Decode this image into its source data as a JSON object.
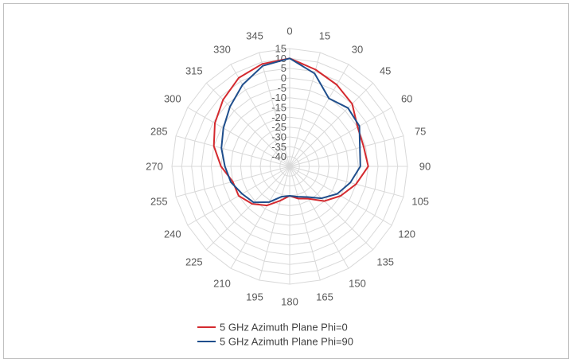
{
  "chart_data": {
    "type": "radar",
    "title": "",
    "angle_labels": [
      "0",
      "15",
      "30",
      "45",
      "60",
      "75",
      "90",
      "105",
      "120",
      "135",
      "150",
      "165",
      "180",
      "195",
      "210",
      "225",
      "240",
      "255",
      "270",
      "285",
      "300",
      "315",
      "330",
      "345"
    ],
    "radial_tick_labels": [
      "15",
      "10",
      "5",
      "0",
      "-5",
      "-10",
      "-15",
      "-20",
      "-25",
      "-30",
      "-35",
      "-40"
    ],
    "rlim": [
      -45,
      15
    ],
    "grid": true,
    "legend_position": "bottom",
    "series": [
      {
        "name": "5 GHz Azimuth Plane Phi=0",
        "color": "#d42a2f",
        "values": [
          10,
          6,
          3,
          0,
          -5,
          -6,
          -5,
          -10,
          -15,
          -20,
          -26,
          -28,
          -30,
          -27,
          -22,
          -18,
          -15,
          -15,
          -10,
          -5,
          -1,
          3,
          7,
          9
        ]
      },
      {
        "name": "5 GHz Azimuth Plane Phi=90",
        "color": "#1f4e8c",
        "values": [
          10,
          4,
          -5,
          -3,
          -4,
          -8,
          -9,
          -13,
          -17,
          -22,
          -27,
          -29,
          -30,
          -29,
          -24,
          -19,
          -17,
          -14,
          -12,
          -9,
          -6,
          -2,
          3,
          8
        ]
      }
    ]
  }
}
